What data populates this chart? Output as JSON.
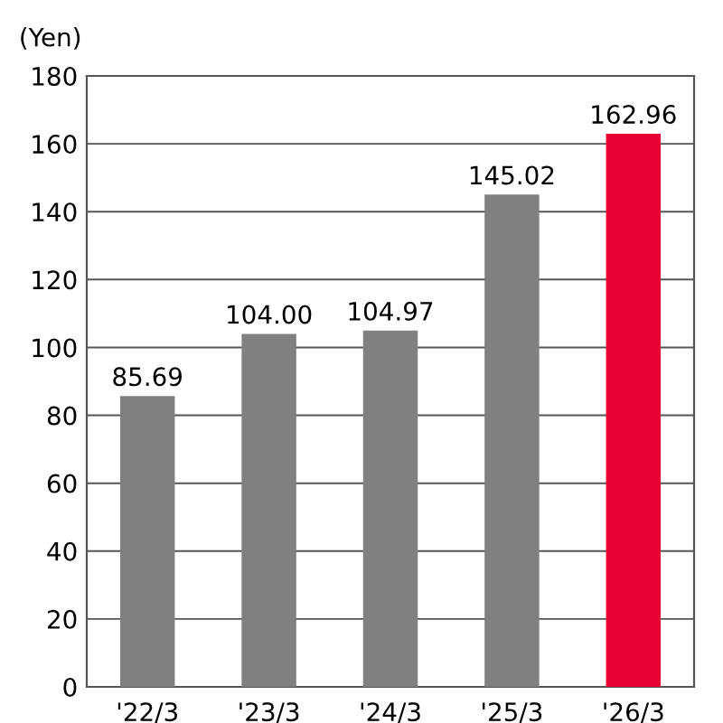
{
  "chart_data": {
    "type": "bar",
    "ylabel": "(Yen)",
    "categories": [
      "'22/3",
      "'23/3",
      "'24/3",
      "'25/3",
      "'26/3"
    ],
    "values": [
      85.69,
      104.0,
      104.97,
      145.02,
      162.96
    ],
    "colors": [
      "#808080",
      "#808080",
      "#808080",
      "#808080",
      "#e60033"
    ],
    "value_labels": [
      "85.69",
      "104.00",
      "104.97",
      "145.02",
      "162.96"
    ],
    "ylim": [
      0,
      180
    ],
    "yticks": [
      0,
      20,
      40,
      60,
      80,
      100,
      120,
      140,
      160,
      180
    ],
    "grid": "y",
    "legend": false
  }
}
